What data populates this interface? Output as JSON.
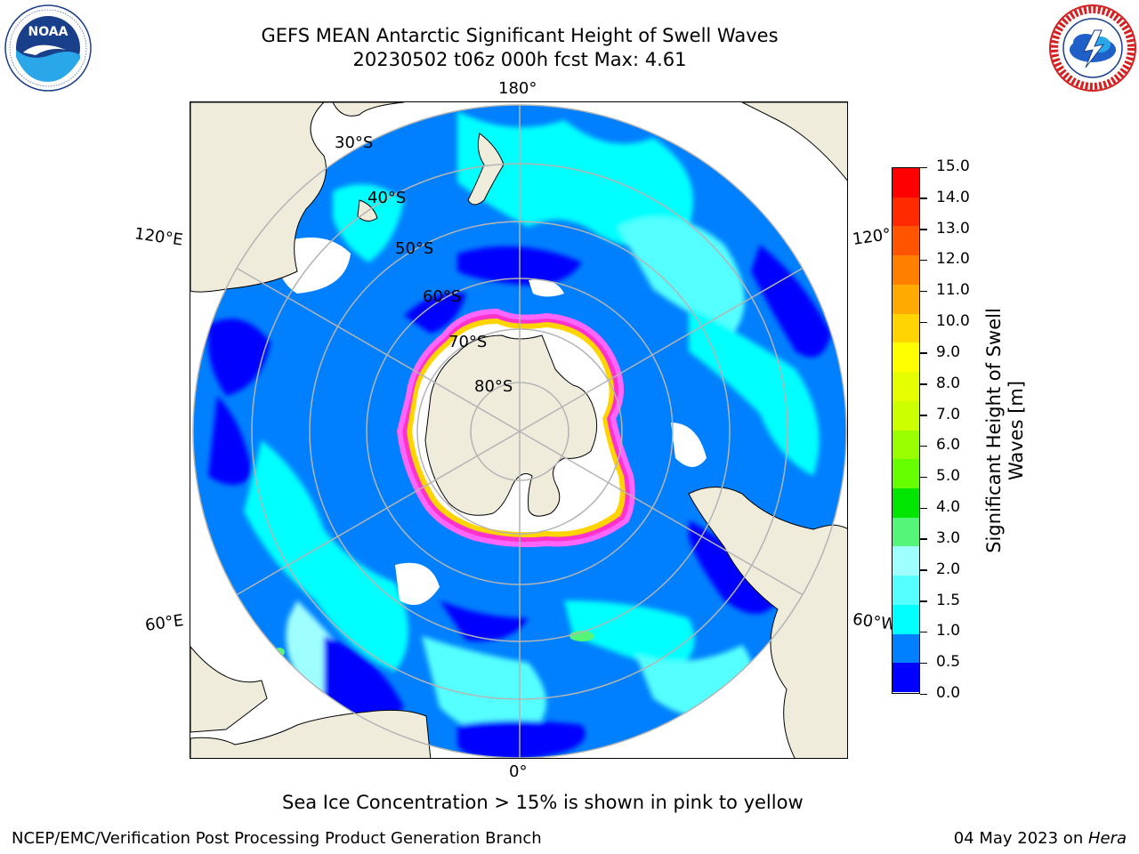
{
  "header": {
    "title_line1": "GEFS MEAN Antarctic Significant Height of Swell Waves",
    "title_line2": "20230502 t06z 000h fcst   Max: 4.61"
  },
  "logos": {
    "noaa": {
      "text": "NOAA",
      "ring_text": "NATIONAL OCEANIC AND ATMOSPHERIC ADMINISTRATION · U.S. DEPARTMENT OF COMMERCE"
    },
    "nws": {
      "ring_text": "NATIONAL WEATHER SERVICE"
    }
  },
  "map": {
    "projection": "south-polar-stereographic",
    "longitude_labels": {
      "top": "180°",
      "bottom": "0°",
      "left_upper": "120°E",
      "left_lower": "60°E",
      "right_upper": "120°",
      "right_lower": "60°W"
    },
    "latitude_labels": [
      "30°S",
      "40°S",
      "50°S",
      "60°S",
      "70°S",
      "80°S"
    ],
    "colors": {
      "land": "#efecdc",
      "ice": "#ffffff",
      "gridline": "#b4b4b4",
      "coast": "#000000"
    }
  },
  "colorbar": {
    "label": "Significant Height of Swell Waves [m]",
    "label_line1": "Significant Height of Swell",
    "label_line2": "Waves [m]",
    "ticks": [
      "15.0",
      "14.0",
      "13.0",
      "12.0",
      "11.0",
      "10.0",
      "9.0",
      "8.0",
      "7.0",
      "6.0",
      "5.0",
      "4.0",
      "3.0",
      "2.0",
      "1.5",
      "1.0",
      "0.5",
      "0.0"
    ],
    "colors_top_to_bottom": [
      "#ff0000",
      "#ff2a00",
      "#ff5500",
      "#ff8000",
      "#ffaa00",
      "#ffd400",
      "#ffff00",
      "#e6ff00",
      "#ccff00",
      "#99ff00",
      "#66ff00",
      "#00e600",
      "#55f57a",
      "#9fffff",
      "#55ffff",
      "#00ffff",
      "#0080ff",
      "#0000ff"
    ]
  },
  "notes": {
    "sea_ice": "Sea Ice Concentration > 15% is shown in pink to yellow"
  },
  "footer": {
    "left": "NCEP/EMC/Verification Post Processing Product Generation Branch",
    "date": "04 May 2023 on ",
    "host": "Hera"
  }
}
